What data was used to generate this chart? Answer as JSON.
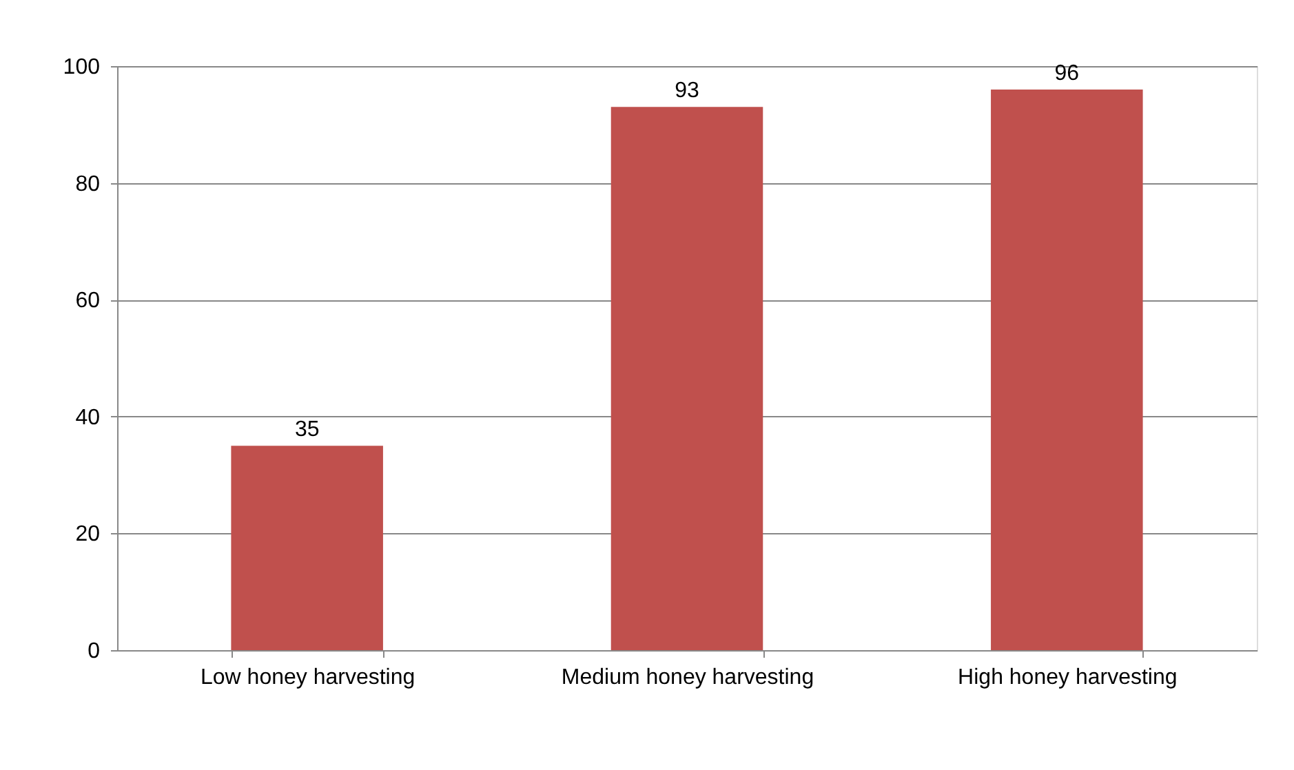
{
  "chart_data": {
    "type": "bar",
    "categories": [
      "Low honey harvesting",
      "Medium honey harvesting",
      "High honey harvesting"
    ],
    "values": [
      35,
      93,
      96
    ],
    "color": "#c0504d",
    "ylim": [
      0,
      100
    ],
    "yticks": [
      0,
      20,
      40,
      60,
      80,
      100
    ],
    "grid": "y",
    "data_labels": true
  }
}
